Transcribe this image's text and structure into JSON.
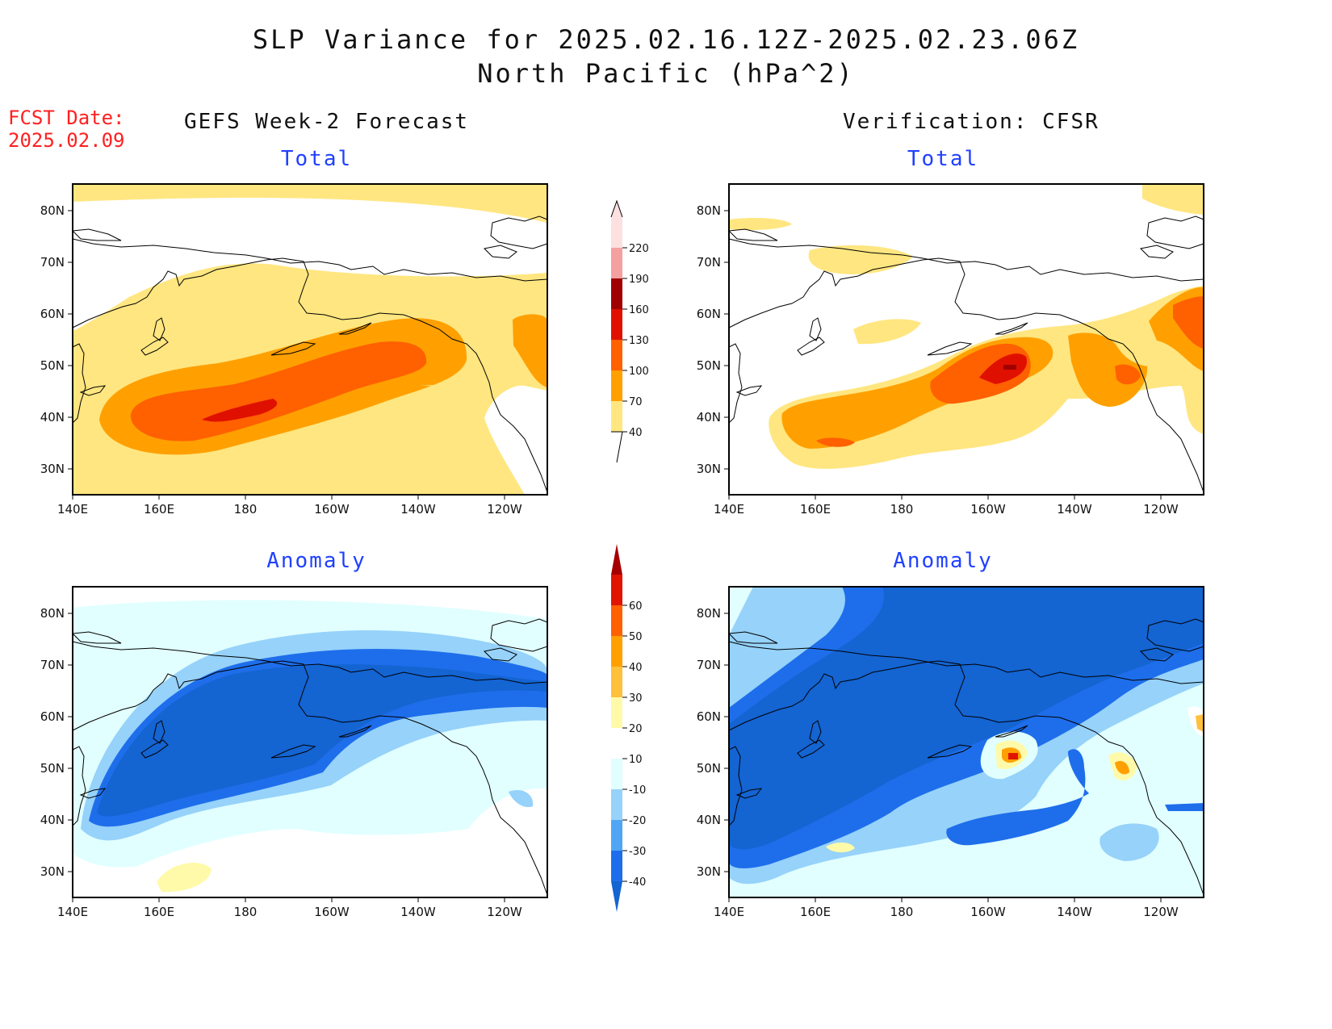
{
  "header": {
    "title_line1": "SLP Variance for 2025.02.16.12Z-2025.02.23.06Z",
    "title_line2": "North Pacific (hPa^2)",
    "fcst_label": "FCST Date:",
    "fcst_date": "2025.02.09"
  },
  "columns": {
    "left": "GEFS Week-2 Forecast",
    "right": "Verification: CFSR"
  },
  "panels": {
    "gefs_total": "Total",
    "cfsr_total": "Total",
    "gefs_anomaly": "Anomaly",
    "cfsr_anomaly": "Anomaly"
  },
  "axes": {
    "lon_ticks": [
      "140E",
      "160E",
      "180",
      "160W",
      "140W",
      "120W"
    ],
    "lat_ticks": [
      "30N",
      "40N",
      "50N",
      "60N",
      "70N",
      "80N"
    ]
  },
  "colorbars": {
    "total": {
      "levels": [
        "40",
        "70",
        "100",
        "130",
        "160",
        "190",
        "220"
      ],
      "colors": [
        "#ffe680",
        "#ffa000",
        "#ff6000",
        "#e01000",
        "#a00000",
        "#f4a0a0",
        "#fde0e0"
      ]
    },
    "anomaly": {
      "levels": [
        "-40",
        "-30",
        "-20",
        "-10",
        "10",
        "20",
        "30",
        "40",
        "50",
        "60"
      ],
      "colors": [
        "#1464d2",
        "#1e6eeb",
        "#50a5f5",
        "#96d2fa",
        "#e1ffff",
        "#ffffff",
        "#fffaaa",
        "#ffc03c",
        "#ffa000",
        "#ff6000",
        "#e11400",
        "#a50000"
      ]
    }
  }
}
